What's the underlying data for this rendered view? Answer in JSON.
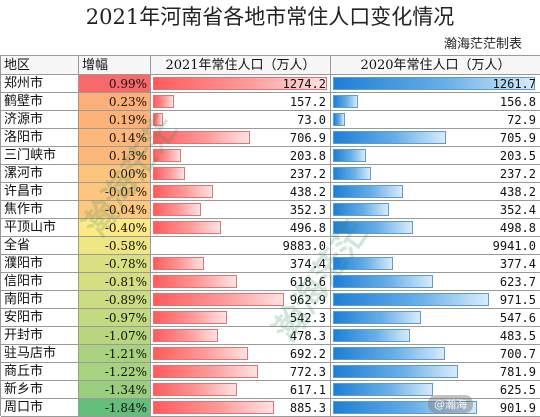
{
  "title": "2021年河南省各地市常住人口变化情况",
  "maker": "瀚海茫茫制表",
  "headers": {
    "region": "地区",
    "growth": "增幅",
    "pop2021": "2021年常住人口（万人）",
    "pop2020": "2020年常住人口（万人）"
  },
  "colors": {
    "bar2021": "#ff6b6b",
    "bar2020": "#2b8ce0",
    "growth_high": "#f8696b",
    "growth_mid": "#ffeb84",
    "growth_low": "#63be7b"
  },
  "chart_data": {
    "type": "table",
    "title": "2021年河南省各地市常住人口变化情况",
    "columns": [
      "地区",
      "增幅",
      "2021年常住人口（万人）",
      "2020年常住人口（万人）"
    ],
    "rows": [
      {
        "region": "郑州市",
        "growth": "0.99%",
        "growth_value": 0.99,
        "pop2021": "1274.2",
        "pop2021_value": 1274.2,
        "pop2020": "1261.7",
        "pop2020_value": 1261.7
      },
      {
        "region": "鹤壁市",
        "growth": "0.23%",
        "growth_value": 0.23,
        "pop2021": "157.2",
        "pop2021_value": 157.2,
        "pop2020": "156.8",
        "pop2020_value": 156.8
      },
      {
        "region": "济源市",
        "growth": "0.19%",
        "growth_value": 0.19,
        "pop2021": "73.0",
        "pop2021_value": 73.0,
        "pop2020": "72.9",
        "pop2020_value": 72.9
      },
      {
        "region": "洛阳市",
        "growth": "0.14%",
        "growth_value": 0.14,
        "pop2021": "706.9",
        "pop2021_value": 706.9,
        "pop2020": "705.9",
        "pop2020_value": 705.9
      },
      {
        "region": "三门峡市",
        "growth": "0.13%",
        "growth_value": 0.13,
        "pop2021": "203.8",
        "pop2021_value": 203.8,
        "pop2020": "203.5",
        "pop2020_value": 203.5
      },
      {
        "region": "漯河市",
        "growth": "0.00%",
        "growth_value": 0.0,
        "pop2021": "237.2",
        "pop2021_value": 237.2,
        "pop2020": "237.2",
        "pop2020_value": 237.2
      },
      {
        "region": "许昌市",
        "growth": "-0.01%",
        "growth_value": -0.01,
        "pop2021": "438.2",
        "pop2021_value": 438.2,
        "pop2020": "438.2",
        "pop2020_value": 438.2
      },
      {
        "region": "焦作市",
        "growth": "-0.04%",
        "growth_value": -0.04,
        "pop2021": "352.3",
        "pop2021_value": 352.3,
        "pop2020": "352.4",
        "pop2020_value": 352.4
      },
      {
        "region": "平顶山市",
        "growth": "-0.40%",
        "growth_value": -0.4,
        "pop2021": "496.8",
        "pop2021_value": 496.8,
        "pop2020": "498.8",
        "pop2020_value": 498.8
      },
      {
        "region": "全省",
        "growth": "-0.58%",
        "growth_value": -0.58,
        "pop2021": "9883.0",
        "pop2021_value": 9883.0,
        "pop2020": "9941.0",
        "pop2020_value": 9941.0
      },
      {
        "region": "濮阳市",
        "growth": "-0.78%",
        "growth_value": -0.78,
        "pop2021": "374.4",
        "pop2021_value": 374.4,
        "pop2020": "377.4",
        "pop2020_value": 377.4
      },
      {
        "region": "信阳市",
        "growth": "-0.81%",
        "growth_value": -0.81,
        "pop2021": "618.6",
        "pop2021_value": 618.6,
        "pop2020": "623.7",
        "pop2020_value": 623.7
      },
      {
        "region": "南阳市",
        "growth": "-0.89%",
        "growth_value": -0.89,
        "pop2021": "962.9",
        "pop2021_value": 962.9,
        "pop2020": "971.5",
        "pop2020_value": 971.5
      },
      {
        "region": "安阳市",
        "growth": "-0.97%",
        "growth_value": -0.97,
        "pop2021": "542.3",
        "pop2021_value": 542.3,
        "pop2020": "547.6",
        "pop2020_value": 547.6
      },
      {
        "region": "开封市",
        "growth": "-1.07%",
        "growth_value": -1.07,
        "pop2021": "478.3",
        "pop2021_value": 478.3,
        "pop2020": "483.5",
        "pop2020_value": 483.5
      },
      {
        "region": "驻马店市",
        "growth": "-1.21%",
        "growth_value": -1.21,
        "pop2021": "692.2",
        "pop2021_value": 692.2,
        "pop2020": "700.7",
        "pop2020_value": 700.7
      },
      {
        "region": "商丘市",
        "growth": "-1.22%",
        "growth_value": -1.22,
        "pop2021": "772.3",
        "pop2021_value": 772.3,
        "pop2020": "781.9",
        "pop2020_value": 781.9
      },
      {
        "region": "新乡市",
        "growth": "-1.34%",
        "growth_value": -1.34,
        "pop2021": "617.1",
        "pop2021_value": 617.1,
        "pop2020": "625.5",
        "pop2020_value": 625.5
      },
      {
        "region": "周口市",
        "growth": "-1.84%",
        "growth_value": -1.84,
        "pop2021": "885.3",
        "pop2021_value": 885.3,
        "pop2020": "901.9",
        "pop2020_value": 901.9
      }
    ],
    "bar_scale_max": 1274.2
  },
  "watermark": {
    "text": "瀚海茫茫",
    "corner_handle": "@瀚海"
  }
}
